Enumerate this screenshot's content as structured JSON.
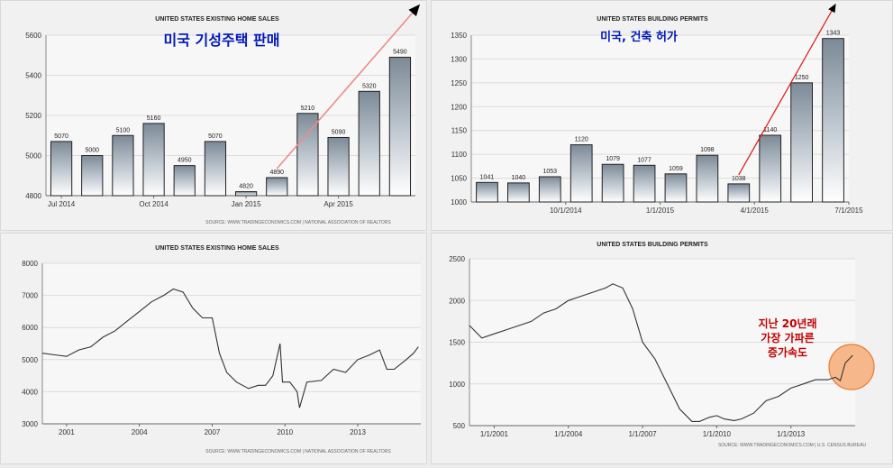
{
  "charts": [
    {
      "type": "bar",
      "title": "UNITED STATES EXISTING HOME SALES",
      "annotation": "미국 기성주택 판매",
      "source": "SOURCE: WWW.TRADINGECONOMICS.COM  |  NATIONAL ASSOCIATION OF REALTORS",
      "ylim": [
        4800,
        5600
      ],
      "yticks": [
        4800,
        5000,
        5200,
        5400,
        5600
      ],
      "x_tick_labels": [
        {
          "label": "Jul 2014",
          "at": 0
        },
        {
          "label": "Oct 2014",
          "at": 3
        },
        {
          "label": "Jan 2015",
          "at": 6
        },
        {
          "label": "Apr 2015",
          "at": 9
        }
      ],
      "values": [
        5070,
        5000,
        5100,
        5160,
        4950,
        5070,
        4820,
        4890,
        5210,
        5090,
        5320,
        5490
      ],
      "trend_from": 7
    },
    {
      "type": "bar",
      "title": "UNITED STATES BUILDING PERMITS",
      "annotation": "미국, 건축 허가",
      "source": "",
      "ylim": [
        1000,
        1350
      ],
      "yticks": [
        1000,
        1050,
        1100,
        1150,
        1200,
        1250,
        1300,
        1350
      ],
      "x_tick_labels": [
        {
          "label": "10/1/2014",
          "at": 2.5
        },
        {
          "label": "1/1/2015",
          "at": 5.5
        },
        {
          "label": "4/1/2015",
          "at": 8.5
        },
        {
          "label": "7/1/2015",
          "at": 11.5
        }
      ],
      "values": [
        1041,
        1040,
        1053,
        1120,
        1079,
        1077,
        1059,
        1098,
        1038,
        1140,
        1250,
        1343
      ],
      "trend_from": 8
    },
    {
      "type": "line",
      "title": "UNITED STATES EXISTING HOME SALES",
      "source": "SOURCE: WWW.TRADINGECONOMICS.COM  |  NATIONAL ASSOCIATION OF REALTORS",
      "xlim": [
        2000,
        2015.6
      ],
      "ylim": [
        3000,
        8000
      ],
      "yticks": [
        3000,
        4000,
        5000,
        6000,
        7000,
        8000
      ],
      "xticks": [
        {
          "label": "2001",
          "at": 2001
        },
        {
          "label": "2004",
          "at": 2004
        },
        {
          "label": "2007",
          "at": 2007
        },
        {
          "label": "2010",
          "at": 2010
        },
        {
          "label": "2013",
          "at": 2013
        }
      ],
      "x": [
        2000,
        2000.5,
        2001,
        2001.5,
        2002,
        2002.5,
        2003,
        2003.5,
        2004,
        2004.5,
        2005,
        2005.4,
        2005.8,
        2006.2,
        2006.6,
        2007,
        2007.3,
        2007.6,
        2008,
        2008.5,
        2008.9,
        2009.2,
        2009.5,
        2009.8,
        2009.9,
        2010.2,
        2010.5,
        2010.6,
        2010.9,
        2011.5,
        2012,
        2012.5,
        2013,
        2013.5,
        2013.9,
        2014.2,
        2014.5,
        2015,
        2015.3,
        2015.5
      ],
      "y": [
        5200,
        5150,
        5100,
        5300,
        5400,
        5700,
        5900,
        6200,
        6500,
        6800,
        7000,
        7200,
        7100,
        6600,
        6300,
        6300,
        5200,
        4600,
        4300,
        4100,
        4200,
        4200,
        4500,
        5500,
        4300,
        4300,
        4000,
        3500,
        4300,
        4350,
        4700,
        4600,
        5000,
        5150,
        5300,
        4700,
        4700,
        5000,
        5200,
        5400
      ]
    },
    {
      "type": "line",
      "title": "UNITED STATES BUILDING PERMITS",
      "source": "SOURCE: WWW.TRADINGECONOMICS.COM  |  U.S. CENSUS BUREAU",
      "annotation_lines": [
        "지난 20년래",
        "가장 가파른",
        "증가속도"
      ],
      "xlim": [
        2000,
        2015.6
      ],
      "ylim": [
        500,
        2500
      ],
      "yticks": [
        500,
        1000,
        1500,
        2000,
        2500
      ],
      "xticks": [
        {
          "label": "1/1/2001",
          "at": 2001
        },
        {
          "label": "1/1/2004",
          "at": 2004
        },
        {
          "label": "1/1/2007",
          "at": 2007
        },
        {
          "label": "1/1/2010",
          "at": 2010
        },
        {
          "label": "1/1/2013",
          "at": 2013
        }
      ],
      "x": [
        2000,
        2000.5,
        2001,
        2001.5,
        2002,
        2002.5,
        2003,
        2003.5,
        2004,
        2004.5,
        2005,
        2005.5,
        2005.8,
        2006.2,
        2006.6,
        2007,
        2007.5,
        2008,
        2008.5,
        2009,
        2009.3,
        2009.7,
        2010,
        2010.3,
        2010.7,
        2011,
        2011.5,
        2012,
        2012.5,
        2013,
        2013.5,
        2014,
        2014.5,
        2014.8,
        2015,
        2015.2,
        2015.5
      ],
      "y": [
        1700,
        1550,
        1600,
        1650,
        1700,
        1750,
        1850,
        1900,
        2000,
        2050,
        2100,
        2150,
        2200,
        2150,
        1900,
        1500,
        1300,
        1000,
        700,
        550,
        550,
        600,
        620,
        580,
        560,
        580,
        650,
        800,
        850,
        950,
        1000,
        1050,
        1050,
        1080,
        1040,
        1250,
        1343
      ]
    }
  ]
}
